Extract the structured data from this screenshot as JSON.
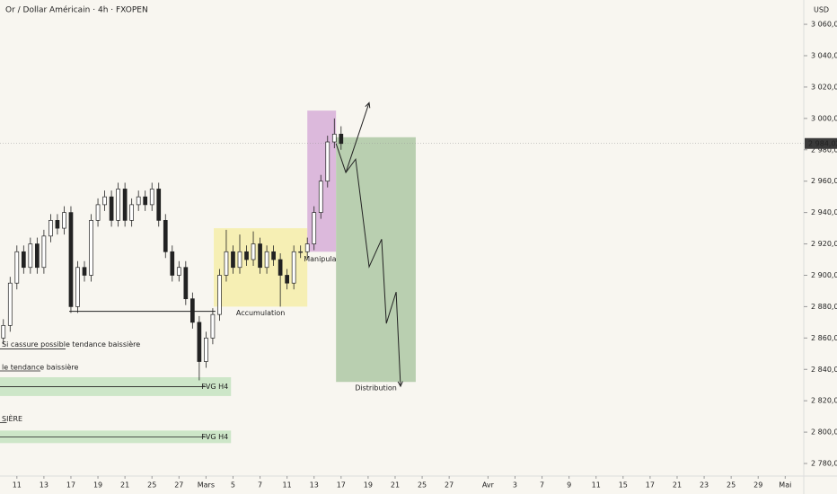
{
  "chart_data": {
    "type": "candlestick",
    "title": "Or / Dollar Américain · 4h · FXOPEN",
    "y_unit": "USD",
    "xlim": [
      0,
      238
    ],
    "ylim": [
      2772,
      3075.5
    ],
    "xticks": [
      {
        "value": 5,
        "label": "11"
      },
      {
        "value": 13,
        "label": "13"
      },
      {
        "value": 21,
        "label": "17"
      },
      {
        "value": 29,
        "label": "19"
      },
      {
        "value": 37,
        "label": "21"
      },
      {
        "value": 45,
        "label": "25"
      },
      {
        "value": 53,
        "label": "27"
      },
      {
        "value": 61,
        "label": "Mars"
      },
      {
        "value": 69,
        "label": "5"
      },
      {
        "value": 77,
        "label": "7"
      },
      {
        "value": 85,
        "label": "11"
      },
      {
        "value": 93,
        "label": "13"
      },
      {
        "value": 101,
        "label": "17"
      },
      {
        "value": 109,
        "label": "19"
      },
      {
        "value": 117,
        "label": "21"
      },
      {
        "value": 125,
        "label": "25"
      },
      {
        "value": 133,
        "label": "27"
      },
      {
        "value": 144.5,
        "label": "Avr"
      },
      {
        "value": 152.5,
        "label": "3"
      },
      {
        "value": 160.5,
        "label": "7"
      },
      {
        "value": 168.5,
        "label": "9"
      },
      {
        "value": 176.5,
        "label": "11"
      },
      {
        "value": 184.5,
        "label": "15"
      },
      {
        "value": 192.5,
        "label": "17"
      },
      {
        "value": 200.5,
        "label": "21"
      },
      {
        "value": 208.5,
        "label": "23"
      },
      {
        "value": 216.5,
        "label": "25"
      },
      {
        "value": 224.5,
        "label": "29"
      },
      {
        "value": 232.5,
        "label": "Mai"
      }
    ],
    "yticks": [
      {
        "value": 2780,
        "label": "2 780,00"
      },
      {
        "value": 2800,
        "label": "2 800,00"
      },
      {
        "value": 2820,
        "label": "2 820,00"
      },
      {
        "value": 2840,
        "label": "2 840,00"
      },
      {
        "value": 2860,
        "label": "2 860,00"
      },
      {
        "value": 2880,
        "label": "2 880,00"
      },
      {
        "value": 2900,
        "label": "2 900,00"
      },
      {
        "value": 2920,
        "label": "2 920,00"
      },
      {
        "value": 2940,
        "label": "2 940,00"
      },
      {
        "value": 2960,
        "label": "2 960,00"
      },
      {
        "value": 2980,
        "label": "2 980,00"
      },
      {
        "value": 3000,
        "label": "3 000,00"
      },
      {
        "value": 3020,
        "label": "3 020,00"
      },
      {
        "value": 3040,
        "label": "3 040,00"
      },
      {
        "value": 3060,
        "label": "3 060,00"
      }
    ],
    "up_color": "#ffffff",
    "down_color": "#222222",
    "x": [
      1,
      3,
      5,
      7,
      9,
      11,
      13,
      15,
      17,
      19,
      21,
      23,
      25,
      27,
      29,
      31,
      33,
      35,
      37,
      39,
      41,
      43,
      45,
      47,
      49,
      51,
      53,
      55,
      57,
      59,
      61,
      63,
      65,
      67,
      69,
      71,
      73,
      75,
      77,
      79,
      81,
      83,
      85,
      87,
      89,
      91,
      93,
      95,
      97,
      99,
      101
    ],
    "open": [
      2860,
      2868,
      2895,
      2915,
      2905,
      2920,
      2905,
      2925,
      2935,
      2930,
      2940,
      2880,
      2905,
      2900,
      2935,
      2945,
      2950,
      2935,
      2955,
      2935,
      2945,
      2950,
      2945,
      2955,
      2935,
      2915,
      2900,
      2905,
      2885,
      2870,
      2845,
      2860,
      2875,
      2900,
      2915,
      2905,
      2915,
      2910,
      2920,
      2905,
      2915,
      2910,
      2900,
      2895,
      2915,
      2915,
      2920,
      2940,
      2960,
      2985,
      2990
    ],
    "high": [
      2872,
      2899,
      2919,
      2919,
      2924,
      2924,
      2929,
      2939,
      2939,
      2944,
      2944,
      2909,
      2909,
      2939,
      2949,
      2954,
      2954,
      2959,
      2959,
      2949,
      2954,
      2954,
      2959,
      2959,
      2939,
      2919,
      2909,
      2909,
      2889,
      2874,
      2864,
      2879,
      2904,
      2929,
      2919,
      2926,
      2919,
      2928,
      2924,
      2919,
      2919,
      2914,
      2904,
      2919,
      2919,
      2924,
      2944,
      2964,
      2989,
      3000,
      2995
    ],
    "low": [
      2856,
      2864,
      2891,
      2901,
      2901,
      2901,
      2901,
      2921,
      2926,
      2926,
      2876,
      2876,
      2896,
      2896,
      2931,
      2941,
      2931,
      2931,
      2931,
      2931,
      2941,
      2941,
      2941,
      2931,
      2911,
      2896,
      2896,
      2881,
      2866,
      2833,
      2841,
      2856,
      2871,
      2896,
      2901,
      2901,
      2906,
      2906,
      2901,
      2901,
      2906,
      2880,
      2891,
      2891,
      2911,
      2911,
      2916,
      2936,
      2956,
      2981,
      2980
    ],
    "close": [
      2868,
      2895,
      2915,
      2905,
      2920,
      2905,
      2925,
      2935,
      2930,
      2940,
      2880,
      2905,
      2900,
      2935,
      2945,
      2950,
      2935,
      2955,
      2935,
      2945,
      2950,
      2945,
      2955,
      2935,
      2915,
      2900,
      2905,
      2885,
      2870,
      2845,
      2860,
      2875,
      2900,
      2915,
      2905,
      2915,
      2910,
      2920,
      2905,
      2915,
      2910,
      2900,
      2895,
      2915,
      2915,
      2920,
      2940,
      2960,
      2985,
      2990,
      2984
    ],
    "last_price": {
      "value": 2984.02,
      "label": "2 984,02"
    },
    "zones": [
      {
        "label": "Accumulation",
        "x": [
          63.3,
          91
        ],
        "y": [
          2880,
          2930
        ],
        "color": "#f6efb4"
      },
      {
        "label": "Manipulation",
        "x": [
          91,
          99.5
        ],
        "y": [
          2915,
          3005
        ],
        "color": "#dcb9dc"
      },
      {
        "label": "Distribution",
        "x": [
          99.5,
          123.1
        ],
        "y": [
          2832,
          2988
        ],
        "color": "#b9cfb0"
      },
      {
        "label": "FVG H4",
        "x": [
          0,
          68.4
        ],
        "y": [
          2823,
          2835
        ],
        "color": "#cde6c8"
      },
      {
        "label": "FVG H4",
        "x": [
          0,
          68.4
        ],
        "y": [
          2793,
          2801
        ],
        "color": "#cde6c8"
      }
    ],
    "levels": [
      {
        "label": "Si cassure possible tendance baissière",
        "x": [
          0,
          19.4
        ],
        "y": 2853
      },
      {
        "label": "le tendance baissière",
        "x": [
          0,
          12
        ],
        "y": 2839
      },
      {
        "label": "SIÈRE",
        "x": [
          0,
          2
        ],
        "y": 2806
      }
    ],
    "support": {
      "x": [
        20.5,
        63.8
      ],
      "y": 2877
    },
    "projection": {
      "x": [
        99.5,
        102.4,
        105.3,
        106.9,
        109.3,
        113,
        114.4,
        117.3,
        118.6
      ],
      "y": [
        2984,
        2965.5,
        2974,
        2946.6,
        2905.4,
        2923,
        2869.3,
        2889.3,
        2829.2
      ]
    },
    "breakout": {
      "x": [
        102.4,
        109.3
      ],
      "y": [
        2965.5,
        3010
      ]
    }
  }
}
